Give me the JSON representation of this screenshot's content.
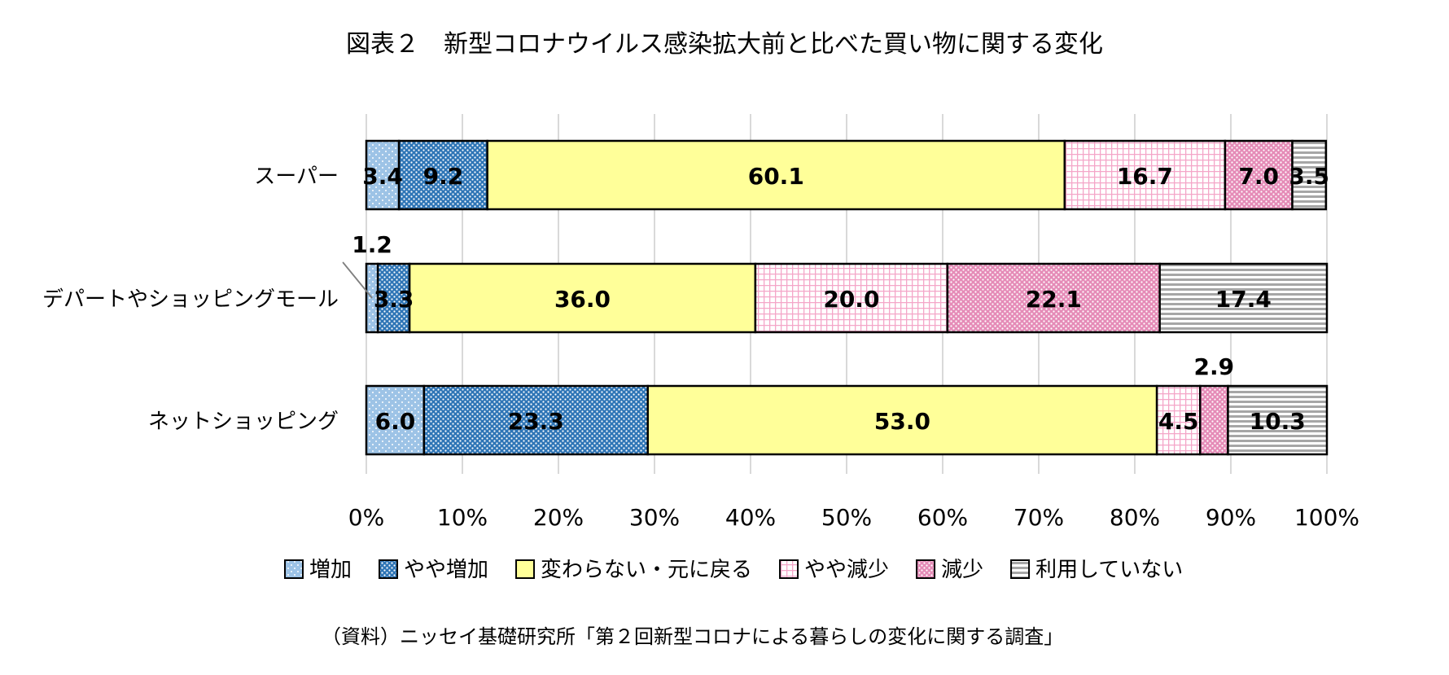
{
  "chart_data": {
    "type": "bar",
    "orientation": "horizontal",
    "stacked": "percent",
    "title": "図表２　新型コロナウイルス感染拡大前と比べた買い物に関する変化",
    "source": "（資料）ニッセイ基礎研究所「第２回新型コロナによる暮らしの変化に関する調査」",
    "categories": [
      "スーパー",
      "デパートやショッピングモール",
      "ネットショッピング"
    ],
    "series": [
      {
        "name": "増加",
        "values": [
          3.4,
          1.2,
          6.0
        ],
        "color": "#9dc3e6",
        "pattern": "dots-light"
      },
      {
        "name": "やや増加",
        "values": [
          9.2,
          3.3,
          23.3
        ],
        "color": "#2e75b6",
        "pattern": "dots-dense"
      },
      {
        "name": "変わらない・元に戻る",
        "values": [
          60.1,
          36.0,
          53.0
        ],
        "color": "#ffff99",
        "pattern": "solid"
      },
      {
        "name": "やや減少",
        "values": [
          16.7,
          20.0,
          4.5
        ],
        "color": "#f4a6c8",
        "pattern": "grid"
      },
      {
        "name": "減少",
        "values": [
          7.0,
          22.1,
          2.9
        ],
        "color": "#e58bb7",
        "pattern": "dots-pink"
      },
      {
        "name": "利用していない",
        "values": [
          3.5,
          17.4,
          10.3
        ],
        "color": "#a6a6a6",
        "pattern": "hlines"
      }
    ],
    "x_ticks": [
      "0%",
      "10%",
      "20%",
      "30%",
      "40%",
      "50%",
      "60%",
      "70%",
      "80%",
      "90%",
      "100%"
    ],
    "xlim": [
      0,
      100
    ],
    "grid": true,
    "legend_position": "bottom"
  }
}
